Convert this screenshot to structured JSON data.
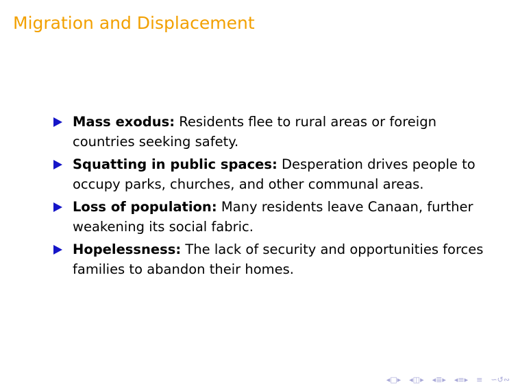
{
  "slide": {
    "title": "Migration and Displacement",
    "title_color": "#f2a000",
    "bullet_color": "#1515c8",
    "bullets": [
      {
        "term": "Mass exodus:",
        "text": "Residents flee to rural areas or foreign countries seeking safety."
      },
      {
        "term": "Squatting in public spaces:",
        "text": "Desperation drives people to occupy parks, churches, and other communal areas."
      },
      {
        "term": "Loss of population:",
        "text": "Many residents leave Canaan, further weakening its social fabric."
      },
      {
        "term": "Hopelessness:",
        "text": "The lack of security and opportunities forces families to abandon their homes."
      }
    ]
  },
  "navigation": {
    "icons": [
      "nav-first-frame-icon",
      "nav-prev-frame-icon",
      "nav-next-frame-icon",
      "nav-prev-section-icon",
      "nav-next-section-icon",
      "nav-prev-subsection-icon",
      "nav-next-subsection-icon",
      "nav-align-icon",
      "nav-search-icon"
    ]
  }
}
